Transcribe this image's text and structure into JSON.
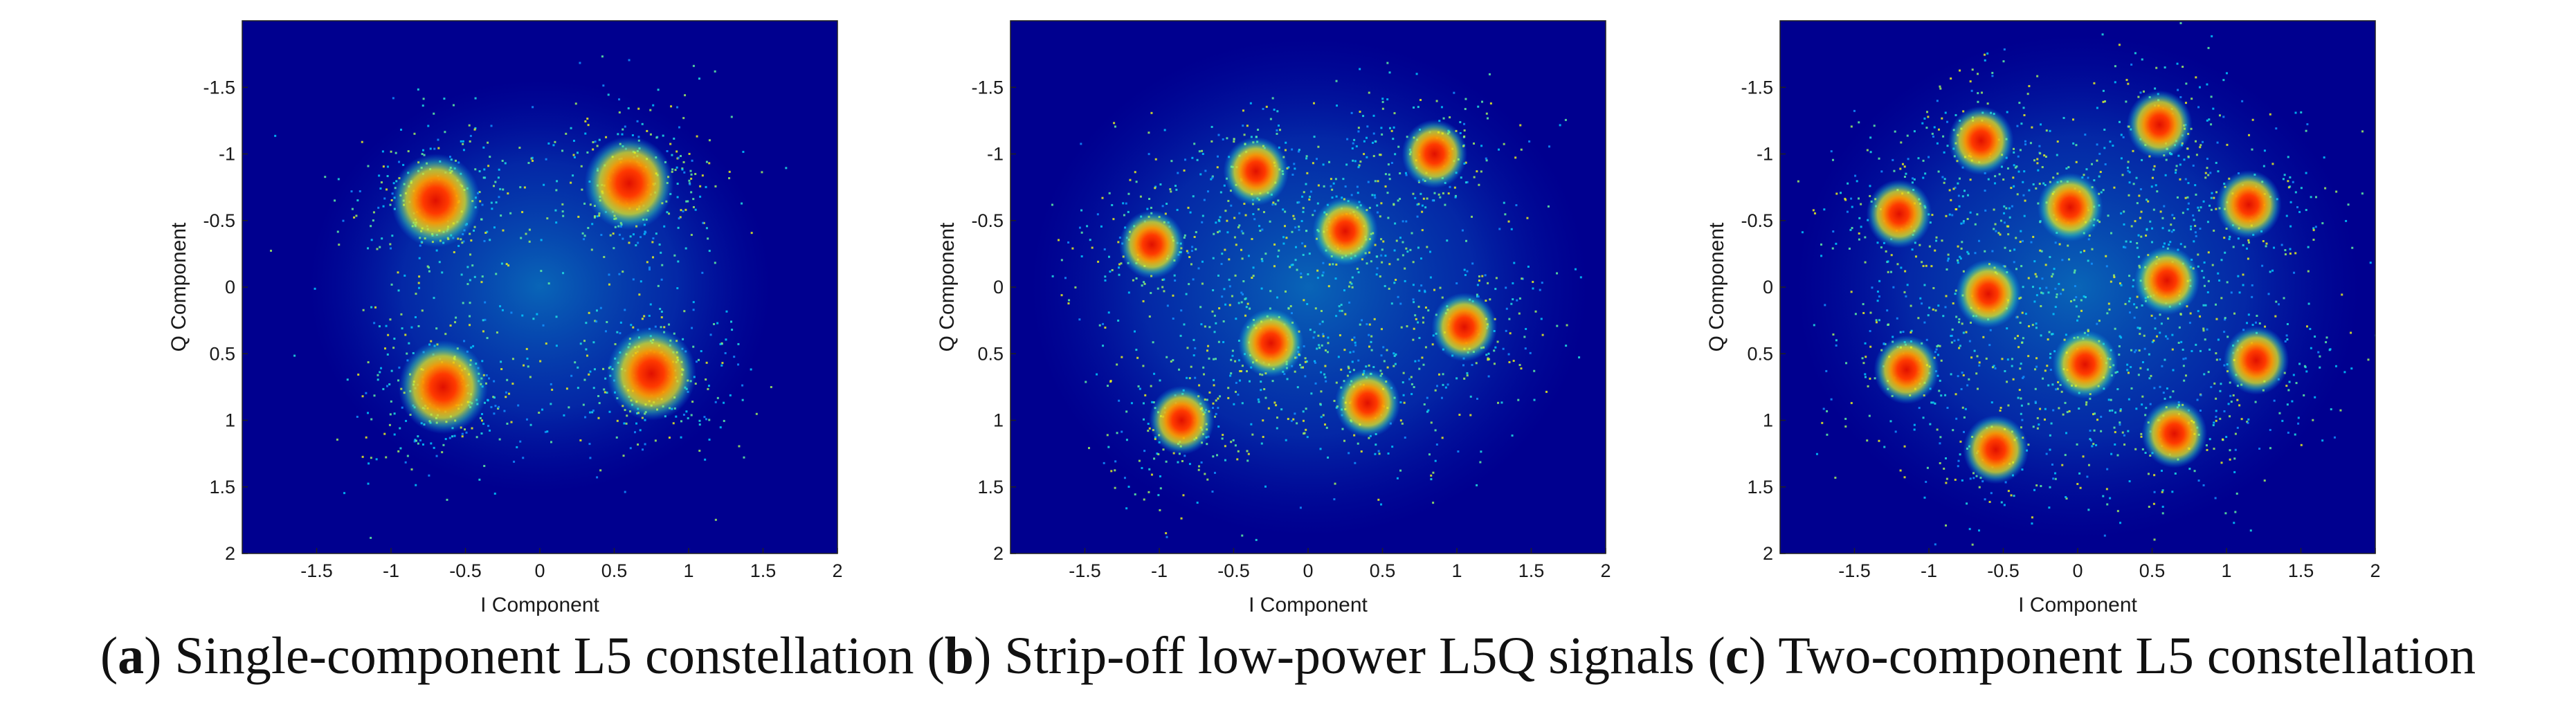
{
  "chart_data": [
    {
      "type": "scatter",
      "panel_letter": "a",
      "caption": "Single-component L5 constellation",
      "xlabel": "I Component",
      "ylabel": "Q Component",
      "xlim": [
        -2,
        2
      ],
      "ylim": [
        -2,
        2
      ],
      "y_axis_reversed": true,
      "xticks": [
        -1.5,
        -1,
        -0.5,
        0,
        0.5,
        1,
        1.5,
        2
      ],
      "yticks": [
        -1.5,
        -1,
        -0.5,
        0,
        0.5,
        1,
        1.5,
        2
      ],
      "background_color": "#00008f",
      "density_colormap": "jet",
      "clusters": [
        {
          "i": -0.7,
          "q": -0.65
        },
        {
          "i": 0.6,
          "q": -0.78
        },
        {
          "i": -0.65,
          "q": 0.75
        },
        {
          "i": 0.75,
          "q": 0.65
        }
      ]
    },
    {
      "type": "scatter",
      "panel_letter": "b",
      "caption": "Strip-off low-power L5Q signals",
      "xlabel": "I Component",
      "ylabel": "Q Component",
      "xlim": [
        -2,
        2
      ],
      "ylim": [
        -2,
        2
      ],
      "y_axis_reversed": true,
      "xticks": [
        -1.5,
        -1,
        -0.5,
        0,
        0.5,
        1,
        1.5,
        2
      ],
      "yticks": [
        -1.5,
        -1,
        -0.5,
        0,
        0.5,
        1,
        1.5,
        2
      ],
      "background_color": "#00008f",
      "density_colormap": "jet",
      "clusters": [
        {
          "i": -0.35,
          "q": -0.87
        },
        {
          "i": 0.85,
          "q": -1.0
        },
        {
          "i": -1.05,
          "q": -0.32
        },
        {
          "i": 0.25,
          "q": -0.42
        },
        {
          "i": -0.25,
          "q": 0.42
        },
        {
          "i": 1.05,
          "q": 0.3
        },
        {
          "i": -0.85,
          "q": 1.0
        },
        {
          "i": 0.4,
          "q": 0.87
        }
      ]
    },
    {
      "type": "scatter",
      "panel_letter": "c",
      "caption": "Two-component L5 constellation",
      "xlabel": "I Component",
      "ylabel": "Q Component",
      "xlim": [
        -2,
        2
      ],
      "ylim": [
        -2,
        2
      ],
      "y_axis_reversed": true,
      "xticks": [
        -1.5,
        -1,
        -0.5,
        0,
        0.5,
        1,
        1.5,
        2
      ],
      "yticks": [
        -1.5,
        -1,
        -0.5,
        0,
        0.5,
        1,
        1.5,
        2
      ],
      "background_color": "#00008f",
      "density_colormap": "jet",
      "clusters": [
        {
          "i": -0.65,
          "q": -1.1
        },
        {
          "i": 0.55,
          "q": -1.22
        },
        {
          "i": -1.2,
          "q": -0.55
        },
        {
          "i": -0.05,
          "q": -0.6
        },
        {
          "i": 1.15,
          "q": -0.62
        },
        {
          "i": -0.6,
          "q": 0.05
        },
        {
          "i": 0.6,
          "q": -0.05
        },
        {
          "i": -1.15,
          "q": 0.62
        },
        {
          "i": 0.05,
          "q": 0.58
        },
        {
          "i": 1.2,
          "q": 0.55
        },
        {
          "i": -0.55,
          "q": 1.22
        },
        {
          "i": 0.65,
          "q": 1.1
        }
      ]
    }
  ]
}
